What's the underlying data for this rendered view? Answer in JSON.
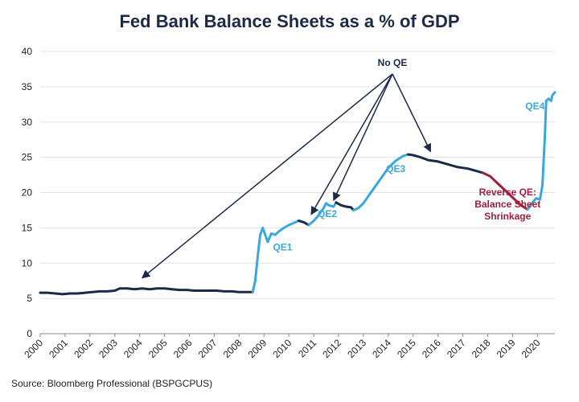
{
  "chart_data": {
    "type": "line",
    "title": "Fed Bank Balance Sheets as a % of GDP",
    "source": "Source: Bloomberg Professional (BSPGCPUS)",
    "xlabel": "",
    "ylabel": "",
    "xlim": [
      2000,
      2020.7
    ],
    "ylim": [
      0,
      40
    ],
    "yticks": [
      0,
      5,
      10,
      15,
      20,
      25,
      30,
      35,
      40
    ],
    "xticks": [
      "2000",
      "2001",
      "2002",
      "2003",
      "2004",
      "2005",
      "2006",
      "2007",
      "2008",
      "2009",
      "2010",
      "2011",
      "2012",
      "2013",
      "2014",
      "2015",
      "2016",
      "2017",
      "2018",
      "2019",
      "2020"
    ],
    "grid": "horizontal",
    "colors": {
      "noqe": "#1b2a48",
      "qe": "#3aa8dc",
      "reverse": "#a51c3a"
    },
    "series": [
      {
        "segment": "noqe",
        "points": [
          [
            2000.0,
            5.8
          ],
          [
            2000.3,
            5.8
          ],
          [
            2000.6,
            5.7
          ],
          [
            2000.9,
            5.6
          ],
          [
            2001.2,
            5.7
          ],
          [
            2001.5,
            5.7
          ],
          [
            2001.8,
            5.8
          ],
          [
            2002.1,
            5.9
          ],
          [
            2002.4,
            6.0
          ],
          [
            2002.7,
            6.0
          ],
          [
            2003.0,
            6.1
          ],
          [
            2003.2,
            6.4
          ],
          [
            2003.5,
            6.4
          ],
          [
            2003.8,
            6.3
          ],
          [
            2004.1,
            6.4
          ],
          [
            2004.4,
            6.3
          ],
          [
            2004.7,
            6.4
          ],
          [
            2005.0,
            6.4
          ],
          [
            2005.3,
            6.3
          ],
          [
            2005.6,
            6.2
          ],
          [
            2005.9,
            6.2
          ],
          [
            2006.2,
            6.1
          ],
          [
            2006.5,
            6.1
          ],
          [
            2006.8,
            6.1
          ],
          [
            2007.1,
            6.1
          ],
          [
            2007.4,
            6.0
          ],
          [
            2007.7,
            6.0
          ],
          [
            2008.0,
            5.9
          ],
          [
            2008.3,
            5.9
          ],
          [
            2008.55,
            5.9
          ]
        ]
      },
      {
        "segment": "qe",
        "label": "QE1",
        "points": [
          [
            2008.55,
            5.9
          ],
          [
            2008.65,
            7.5
          ],
          [
            2008.75,
            11.0
          ],
          [
            2008.85,
            14.0
          ],
          [
            2008.95,
            15.0
          ],
          [
            2009.05,
            14.0
          ],
          [
            2009.15,
            13.0
          ],
          [
            2009.3,
            14.2
          ],
          [
            2009.45,
            14.0
          ],
          [
            2009.6,
            14.5
          ],
          [
            2009.8,
            15.0
          ],
          [
            2010.0,
            15.4
          ],
          [
            2010.2,
            15.7
          ],
          [
            2010.4,
            16.0
          ]
        ]
      },
      {
        "segment": "noqe",
        "points": [
          [
            2010.4,
            16.0
          ],
          [
            2010.6,
            15.8
          ],
          [
            2010.8,
            15.4
          ]
        ]
      },
      {
        "segment": "qe",
        "label": "QE2",
        "points": [
          [
            2010.8,
            15.4
          ],
          [
            2011.0,
            16.0
          ],
          [
            2011.2,
            16.8
          ],
          [
            2011.4,
            17.8
          ],
          [
            2011.5,
            18.5
          ],
          [
            2011.6,
            18.2
          ],
          [
            2011.8,
            18.0
          ],
          [
            2011.9,
            18.6
          ]
        ]
      },
      {
        "segment": "noqe",
        "points": [
          [
            2011.9,
            18.6
          ],
          [
            2012.1,
            18.2
          ],
          [
            2012.3,
            18.0
          ],
          [
            2012.5,
            17.9
          ],
          [
            2012.6,
            17.5
          ]
        ]
      },
      {
        "segment": "qe",
        "label": "QE3",
        "points": [
          [
            2012.6,
            17.5
          ],
          [
            2012.8,
            17.8
          ],
          [
            2013.0,
            18.5
          ],
          [
            2013.2,
            19.5
          ],
          [
            2013.5,
            21.0
          ],
          [
            2013.8,
            22.5
          ],
          [
            2014.0,
            23.5
          ],
          [
            2014.3,
            24.5
          ],
          [
            2014.6,
            25.2
          ],
          [
            2014.8,
            25.4
          ]
        ]
      },
      {
        "segment": "noqe",
        "points": [
          [
            2014.8,
            25.4
          ],
          [
            2015.0,
            25.3
          ],
          [
            2015.3,
            25.0
          ],
          [
            2015.6,
            24.6
          ],
          [
            2016.0,
            24.4
          ],
          [
            2016.4,
            24.0
          ],
          [
            2016.8,
            23.6
          ],
          [
            2017.2,
            23.4
          ],
          [
            2017.6,
            23.0
          ],
          [
            2017.8,
            22.8
          ]
        ]
      },
      {
        "segment": "reverse",
        "label": "Reverse QE: Balance Sheet Shrinkage",
        "points": [
          [
            2017.8,
            22.8
          ],
          [
            2018.1,
            22.3
          ],
          [
            2018.4,
            21.3
          ],
          [
            2018.7,
            20.3
          ],
          [
            2019.0,
            19.3
          ],
          [
            2019.3,
            18.3
          ],
          [
            2019.6,
            17.6
          ]
        ]
      },
      {
        "segment": "qe",
        "label": "QE4",
        "points": [
          [
            2019.6,
            17.6
          ],
          [
            2019.8,
            18.6
          ],
          [
            2019.95,
            19.2
          ],
          [
            2020.1,
            19.0
          ],
          [
            2020.2,
            21.0
          ],
          [
            2020.3,
            28.0
          ],
          [
            2020.35,
            33.0
          ],
          [
            2020.45,
            33.3
          ],
          [
            2020.55,
            33.0
          ],
          [
            2020.6,
            33.8
          ],
          [
            2020.7,
            34.2
          ]
        ]
      }
    ],
    "annotations": {
      "no_qe": {
        "text": "No QE",
        "targets": [
          [
            2004.1,
            7.9
          ],
          [
            2010.9,
            16.9
          ],
          [
            2011.8,
            18.9
          ],
          [
            2015.7,
            25.8
          ]
        ]
      },
      "labels": [
        {
          "text": "QE1",
          "x": 2009.75,
          "y": 11.8,
          "color": "#3aa8dc"
        },
        {
          "text": "QE2",
          "x": 2011.55,
          "y": 16.5,
          "color": "#3aa8dc"
        },
        {
          "text": "QE3",
          "x": 2014.3,
          "y": 22.9,
          "color": "#3aa8dc"
        },
        {
          "text": "QE4",
          "x": 2019.9,
          "y": 31.8,
          "color": "#3aa8dc"
        }
      ],
      "reverse_lines": [
        "Reverse QE:",
        "Balance Sheet",
        "Shrinkage"
      ]
    }
  }
}
